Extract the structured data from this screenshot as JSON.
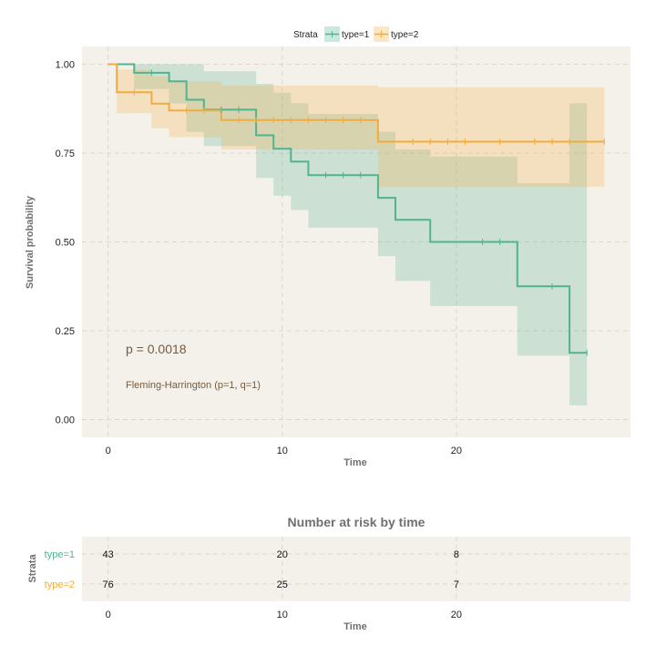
{
  "chart_data": [
    {
      "type": "line",
      "subtype": "step-survival",
      "title": "",
      "xlabel": "Time",
      "ylabel": "Survival probability",
      "xlim": [
        -1.5,
        30
      ],
      "ylim": [
        -0.05,
        1.05
      ],
      "xticks": [
        0,
        10,
        20
      ],
      "yticks": [
        0.0,
        0.25,
        0.5,
        0.75,
        1.0
      ],
      "ytick_labels": [
        "0.00",
        "0.25",
        "0.50",
        "0.75",
        "1.00"
      ],
      "grid": true,
      "legend": {
        "title": "Strata",
        "placement": "top-center"
      },
      "annotations": [
        "p = 0.0018",
        "Fleming-Harrington (p=1, q=1)"
      ],
      "series": [
        {
          "name": "type=1",
          "color": "#52b391",
          "steps": [
            [
              0,
              1.0
            ],
            [
              1.5,
              0.976
            ],
            [
              3.5,
              0.952
            ],
            [
              4.5,
              0.9
            ],
            [
              5.5,
              0.872
            ],
            [
              8.5,
              0.8
            ],
            [
              9.5,
              0.762
            ],
            [
              10.5,
              0.726
            ],
            [
              11.5,
              0.688
            ],
            [
              15.5,
              0.624
            ],
            [
              16.5,
              0.562
            ],
            [
              18.5,
              0.5
            ],
            [
              23.5,
              0.375
            ],
            [
              26.5,
              0.188
            ],
            [
              27.5,
              0.188
            ]
          ],
          "ci_lower": [
            1.0,
            0.93,
            0.89,
            0.81,
            0.77,
            0.68,
            0.63,
            0.59,
            0.54,
            0.46,
            0.39,
            0.32,
            0.18,
            0.04,
            0.04
          ],
          "ci_upper": [
            1.0,
            1.0,
            1.0,
            1.0,
            0.98,
            0.945,
            0.92,
            0.89,
            0.86,
            0.81,
            0.76,
            0.74,
            0.665,
            0.89,
            0.89
          ],
          "censor_times": [
            2.5,
            6.5,
            7.5,
            12.5,
            13.5,
            14.5,
            21.5,
            22.5,
            25.5,
            27.5
          ]
        },
        {
          "name": "type=2",
          "color": "#f2ac3e",
          "steps": [
            [
              0,
              1.0
            ],
            [
              0.5,
              0.921
            ],
            [
              2.5,
              0.889
            ],
            [
              3.5,
              0.87
            ],
            [
              6.5,
              0.843
            ],
            [
              15.5,
              0.782
            ],
            [
              28.5,
              0.782
            ]
          ],
          "ci_lower": [
            1.0,
            0.862,
            0.82,
            0.795,
            0.76,
            0.655,
            0.655
          ],
          "ci_upper": [
            1.0,
            0.985,
            0.966,
            0.952,
            0.94,
            0.935,
            0.935
          ],
          "censor_times": [
            1.5,
            4.5,
            5.5,
            7.5,
            8.5,
            9.5,
            10.5,
            11.5,
            12.5,
            13.5,
            14.5,
            17.5,
            18.5,
            19.5,
            20.5,
            22.5,
            24.5,
            25.5,
            26.5,
            28.5
          ]
        }
      ]
    },
    {
      "type": "table",
      "title": "Number at risk by time",
      "xlabel": "Time",
      "ylabel": "Strata",
      "times": [
        0,
        10,
        20
      ],
      "rows": [
        {
          "name": "type=1",
          "color": "#52b391",
          "values": [
            43,
            20,
            8
          ]
        },
        {
          "name": "type=2",
          "color": "#f2ac3e",
          "values": [
            76,
            25,
            7
          ]
        }
      ]
    }
  ]
}
